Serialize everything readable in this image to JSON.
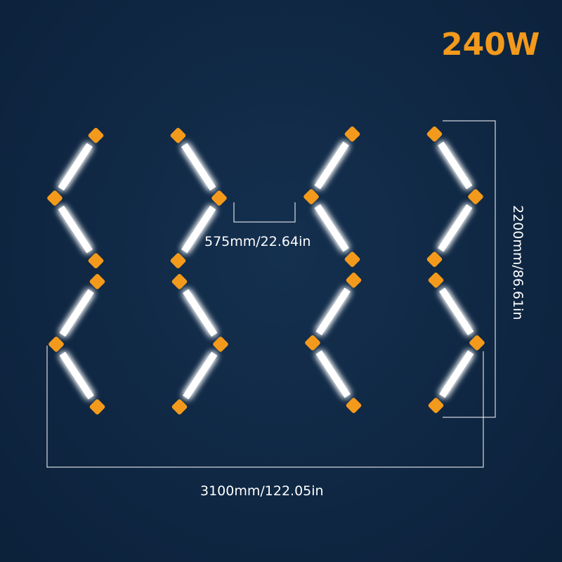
{
  "power": "240W",
  "dimensions": {
    "bar_length": "575mm/22.64in",
    "total_height": "2200mm/86.61in",
    "total_width": "3100mm/122.05in"
  },
  "colors": {
    "background": "#0f2743",
    "tube": "#ffffff",
    "corner_connector": "#f39a1c",
    "junction_connector": "#1fd8ee",
    "power_text": "#f39a1c"
  },
  "layout_summary": {
    "hexagon_count": 4,
    "connector_types": [
      "corner-connector",
      "junction-connector"
    ]
  }
}
